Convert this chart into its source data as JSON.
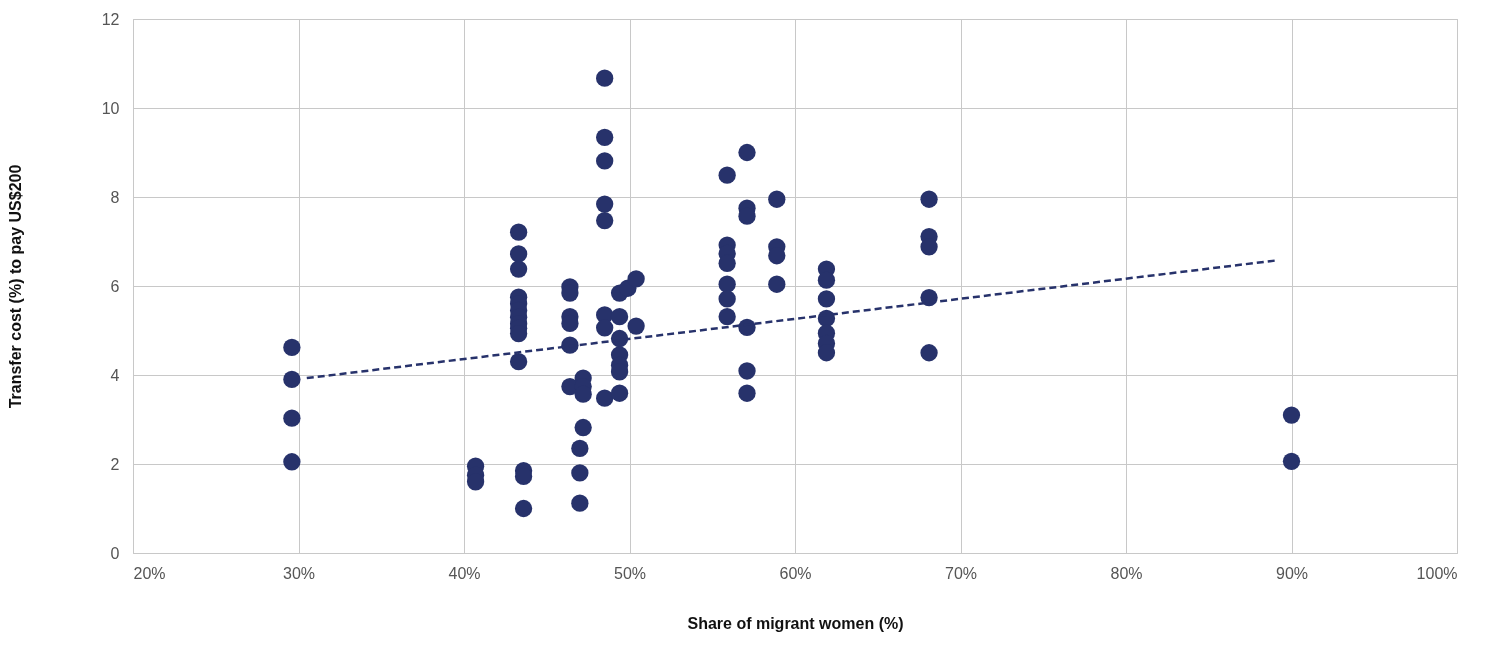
{
  "chart_data": {
    "type": "scatter",
    "xlabel": "Share of migrant women (%)",
    "ylabel": "Transfer cost (%) to pay US$200",
    "xlim": [
      20,
      100
    ],
    "xticks": [
      {
        "value": 20,
        "label": "20%"
      },
      {
        "value": 30,
        "label": "30%"
      },
      {
        "value": 40,
        "label": "40%"
      },
      {
        "value": 50,
        "label": "50%"
      },
      {
        "value": 60,
        "label": "60%"
      },
      {
        "value": 70,
        "label": "70%"
      },
      {
        "value": 80,
        "label": "80%"
      },
      {
        "value": 90,
        "label": "90%"
      },
      {
        "value": 100,
        "label": "100%"
      }
    ],
    "ylim": [
      0,
      12
    ],
    "yticks": [
      0,
      2,
      4,
      6,
      8,
      10,
      12
    ],
    "grid": true,
    "marker": "circle",
    "series": [
      {
        "color": "#27326b",
        "x": [
          29.6,
          29.6,
          29.6,
          29.6,
          40.7,
          40.7,
          40.7,
          43.6,
          43.6,
          43.6,
          43.3,
          43.3,
          43.3,
          43.3,
          43.3,
          43.3,
          43.3,
          43.3,
          43.3,
          43.3,
          43.3,
          46.4,
          46.4,
          46.4,
          46.4,
          46.4,
          46.4,
          47.2,
          47.2,
          47.2,
          47.2,
          47.0,
          47.0,
          47.0,
          48.5,
          48.5,
          48.5,
          48.5,
          48.5,
          48.5,
          48.5,
          48.5,
          49.4,
          49.4,
          49.4,
          49.4,
          49.4,
          49.4,
          49.4,
          49.9,
          50.4,
          50.4,
          55.9,
          55.9,
          55.9,
          55.9,
          55.9,
          55.9,
          55.9,
          57.1,
          57.1,
          57.1,
          57.1,
          57.1,
          57.1,
          58.9,
          58.9,
          58.9,
          58.9,
          61.9,
          61.9,
          61.9,
          61.9,
          61.9,
          61.9,
          61.9,
          68.1,
          68.1,
          68.1,
          68.1,
          68.1,
          90.0,
          90.0
        ],
        "values": [
          4.62,
          3.9,
          3.03,
          2.05,
          1.95,
          1.75,
          1.6,
          1.85,
          1.72,
          1.0,
          7.21,
          6.72,
          6.38,
          5.75,
          5.6,
          5.45,
          5.3,
          5.15,
          5.05,
          4.93,
          4.3,
          5.98,
          5.84,
          5.31,
          5.16,
          4.67,
          3.74,
          3.93,
          3.74,
          3.57,
          2.82,
          2.35,
          1.8,
          1.12,
          10.67,
          9.34,
          8.81,
          7.84,
          7.47,
          5.35,
          5.06,
          3.48,
          5.84,
          5.31,
          4.82,
          4.45,
          4.22,
          4.07,
          3.59,
          5.95,
          6.16,
          5.1,
          8.49,
          6.92,
          6.73,
          6.51,
          6.04,
          5.71,
          5.31,
          9.0,
          7.75,
          7.57,
          5.07,
          4.09,
          3.59,
          7.95,
          6.88,
          6.68,
          6.04,
          6.38,
          6.13,
          5.71,
          5.27,
          4.94,
          4.71,
          4.5,
          7.95,
          7.11,
          6.88,
          5.74,
          4.5,
          3.1,
          2.06
        ]
      },
      {
        "type": "line",
        "color": "#27326b",
        "line_style": "dashed",
        "marker": "none",
        "x": [
          30.5,
          89.2
        ],
        "values": [
          3.93,
          6.58
        ]
      }
    ]
  }
}
